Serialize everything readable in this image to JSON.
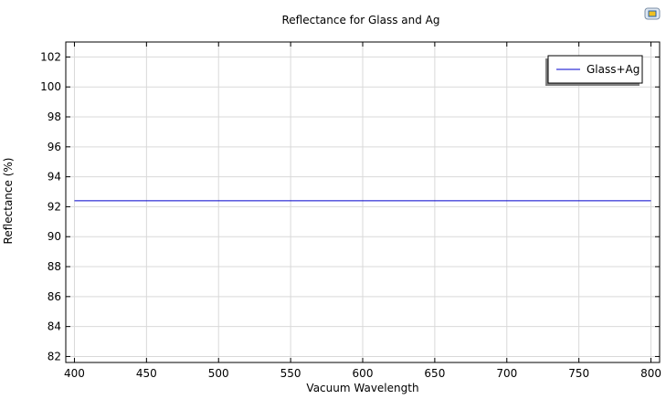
{
  "corner_icon": "image-export-icon",
  "colors": {
    "series_line": "#0000cc",
    "grid": "#d9d9d9",
    "axis": "#000000",
    "legend_shadow": "#808080"
  },
  "chart_data": {
    "type": "line",
    "title": "Reflectance for Glass and Ag",
    "xlabel": "Vacuum Wavelength",
    "ylabel": "Reflectance (%)",
    "xlim": [
      394,
      806
    ],
    "ylim": [
      81.6,
      103
    ],
    "xticks": [
      400,
      450,
      500,
      550,
      600,
      650,
      700,
      750,
      800
    ],
    "yticks": [
      82,
      84,
      86,
      88,
      90,
      92,
      94,
      96,
      98,
      100,
      102
    ],
    "grid": true,
    "legend_position": "top-right",
    "series": [
      {
        "name": "Glass+Ag",
        "x": [
          400,
          800
        ],
        "y": [
          92.4,
          92.4
        ]
      }
    ]
  }
}
